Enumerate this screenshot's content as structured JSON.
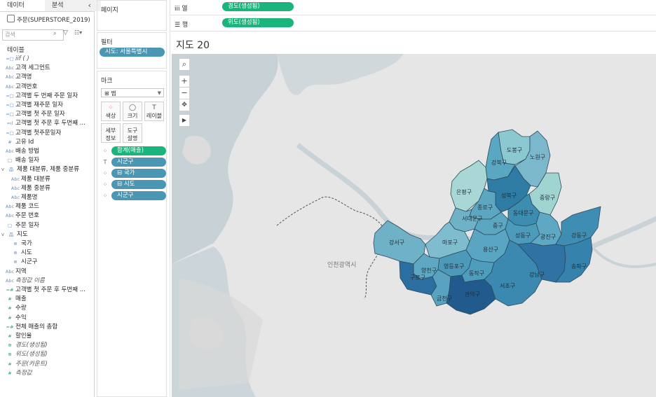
{
  "data_pane": {
    "tabs": [
      "데이터",
      "분석"
    ],
    "datasource": "주문(SUPERSTORE_2019)",
    "search_placeholder": "검색",
    "section": "테이블",
    "fields": [
      {
        "icon": "=□",
        "label": "iif ( )",
        "kind": "dim",
        "italic": true
      },
      {
        "icon": "Abc",
        "label": "고객 세그먼트",
        "kind": "dim"
      },
      {
        "icon": "Abc",
        "label": "고객명",
        "kind": "dim"
      },
      {
        "icon": "Abc",
        "label": "고객번호",
        "kind": "dim"
      },
      {
        "icon": "=□",
        "label": "고객별 두 번째 주문 일자",
        "kind": "dim"
      },
      {
        "icon": "=□",
        "label": "고객별 재주문 일자",
        "kind": "dim"
      },
      {
        "icon": "=□",
        "label": "고객별 첫 주문 일자",
        "kind": "dim"
      },
      {
        "icon": "=ıl",
        "label": "고객별 첫 주문 후 두번째 ...",
        "kind": "dim"
      },
      {
        "icon": "=□",
        "label": "고객별 첫주문일자",
        "kind": "dim"
      },
      {
        "icon": "#",
        "label": "고유 Id",
        "kind": "dim"
      },
      {
        "icon": "Abc",
        "label": "배송 방법",
        "kind": "dim"
      },
      {
        "icon": "□",
        "label": "배송 일자",
        "kind": "dim"
      },
      {
        "icon": "品",
        "label": "제품 대분류, 제품 중분류",
        "kind": "dim",
        "twisty": "v"
      },
      {
        "icon": "Abc",
        "label": "제품 대분류",
        "kind": "dim",
        "indent": true
      },
      {
        "icon": "Abc",
        "label": "제품 중분류",
        "kind": "dim",
        "indent": true
      },
      {
        "icon": "Abc",
        "label": "제품명",
        "kind": "dim",
        "indent": true
      },
      {
        "icon": "Abc",
        "label": "제품 코드",
        "kind": "dim"
      },
      {
        "icon": "Abc",
        "label": "주문 번호",
        "kind": "dim"
      },
      {
        "icon": "□",
        "label": "주문 일자",
        "kind": "dim"
      },
      {
        "icon": "品",
        "label": "지도",
        "kind": "dim",
        "twisty": "v"
      },
      {
        "icon": "⊕",
        "label": "국가",
        "kind": "dim",
        "indent": true
      },
      {
        "icon": "⊕",
        "label": "시도",
        "kind": "dim",
        "indent": true
      },
      {
        "icon": "⊕",
        "label": "시군구",
        "kind": "dim",
        "indent": true
      },
      {
        "icon": "Abc",
        "label": "지역",
        "kind": "dim"
      },
      {
        "icon": "Abc",
        "label": "측정값 이름",
        "kind": "dim",
        "italic": true
      },
      {
        "icon": "=#",
        "label": "고객별 첫 주문 후 두번째 ...",
        "kind": "meas"
      },
      {
        "icon": "#",
        "label": "매출",
        "kind": "meas"
      },
      {
        "icon": "#",
        "label": "수량",
        "kind": "meas"
      },
      {
        "icon": "#",
        "label": "수익",
        "kind": "meas"
      },
      {
        "icon": "=#",
        "label": "전체 매출의 총합",
        "kind": "meas"
      },
      {
        "icon": "#",
        "label": "할인율",
        "kind": "meas"
      },
      {
        "icon": "⊕",
        "label": "경도(생성됨)",
        "kind": "meas",
        "italic": true
      },
      {
        "icon": "⊕",
        "label": "위도(생성됨)",
        "kind": "meas",
        "italic": true
      },
      {
        "icon": "#",
        "label": "주문(카운트)",
        "kind": "meas",
        "italic": true
      },
      {
        "icon": "#",
        "label": "측정값",
        "kind": "meas",
        "italic": true
      }
    ]
  },
  "pages": {
    "title": "페이지"
  },
  "filters": {
    "title": "필터",
    "pills": [
      "시도: 서울특별시"
    ]
  },
  "marks": {
    "title": "마크",
    "type": "맵",
    "cards": [
      {
        "icon": "⁘",
        "label": "색상"
      },
      {
        "icon": "◯",
        "label": "크기"
      },
      {
        "icon": "T",
        "label": "레이블"
      },
      {
        "icon": "",
        "label": "세부\n정보"
      },
      {
        "icon": "",
        "label": "도구\n설명"
      }
    ],
    "shelf": [
      {
        "icon": "⁘",
        "label": "합계(매출)",
        "color": "#1bb47c"
      },
      {
        "icon": "T",
        "label": "시군구",
        "color": "#4b97b3"
      },
      {
        "icon": "⁘",
        "label": "⊟ 국가",
        "color": "#4b97b3"
      },
      {
        "icon": "⁘",
        "label": "⊟ 시도",
        "color": "#4b97b3"
      },
      {
        "icon": "⁘",
        "label": "시군구",
        "color": "#4b97b3"
      }
    ]
  },
  "shelves": {
    "columns_label": "iii 열",
    "columns_pill": "경도(생성됨)",
    "rows_label": "☰ 행",
    "rows_pill": "위도(생성됨)"
  },
  "view": {
    "title": "지도 20",
    "basemap_label": "인천광역시",
    "districts": [
      {
        "name": "도봉구",
        "color": "#8cc8d0"
      },
      {
        "name": "노원구",
        "color": "#7bb8cc"
      },
      {
        "name": "강북구",
        "color": "#5aa7c2"
      },
      {
        "name": "은평구",
        "color": "#a8d7d6"
      },
      {
        "name": "성북구",
        "color": "#2e7ba3"
      },
      {
        "name": "중랑구",
        "color": "#a0d4d0"
      },
      {
        "name": "종로구",
        "color": "#5ba6c1"
      },
      {
        "name": "동대문구",
        "color": "#3d8db0"
      },
      {
        "name": "서대문구",
        "color": "#6fb2c7"
      },
      {
        "name": "강서구",
        "color": "#6fb1c7"
      },
      {
        "name": "마포구",
        "color": "#7fbccd"
      },
      {
        "name": "중구",
        "color": "#5ba6c1"
      },
      {
        "name": "성동구",
        "color": "#4c9bba"
      },
      {
        "name": "광진구",
        "color": "#5ea8c3"
      },
      {
        "name": "강동구",
        "color": "#3f8db3"
      },
      {
        "name": "용산구",
        "color": "#5aa5c1"
      },
      {
        "name": "양천구",
        "color": "#5ea8c3"
      },
      {
        "name": "영등포구",
        "color": "#4c99ba"
      },
      {
        "name": "구로구",
        "color": "#2a6fa0"
      },
      {
        "name": "동작구",
        "color": "#4f9dbd"
      },
      {
        "name": "금천구",
        "color": "#5aa3c0"
      },
      {
        "name": "관악구",
        "color": "#215b8e"
      },
      {
        "name": "서초구",
        "color": "#3b88b0"
      },
      {
        "name": "강남구",
        "color": "#2e73a3"
      },
      {
        "name": "송파구",
        "color": "#3583ad"
      }
    ]
  }
}
